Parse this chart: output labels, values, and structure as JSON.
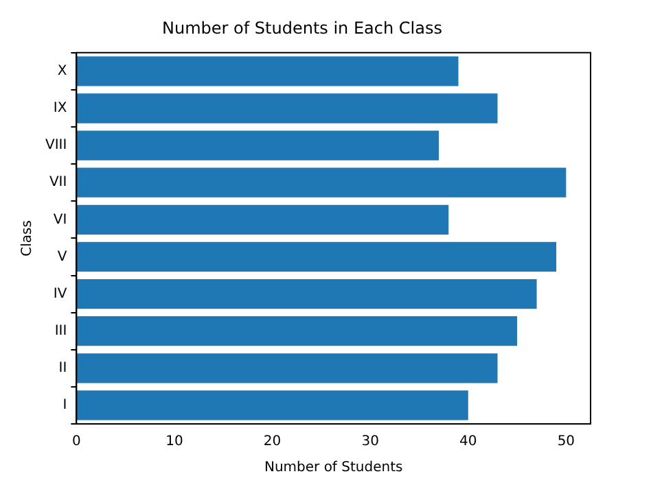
{
  "chart_data": {
    "type": "bar",
    "orientation": "horizontal",
    "title": "Number of Students in Each Class",
    "xlabel": "Number of Students",
    "ylabel": "Class",
    "categories": [
      "X",
      "IX",
      "VIII",
      "VII",
      "VI",
      "V",
      "IV",
      "III",
      "II",
      "I"
    ],
    "values": [
      39,
      43,
      37,
      50,
      38,
      49,
      47,
      45,
      43,
      40
    ],
    "color": "#1f77b4",
    "xlim": [
      0,
      52.5
    ],
    "xticks": [
      0,
      10,
      20,
      30,
      40,
      50
    ],
    "grid": false,
    "legend": false
  }
}
